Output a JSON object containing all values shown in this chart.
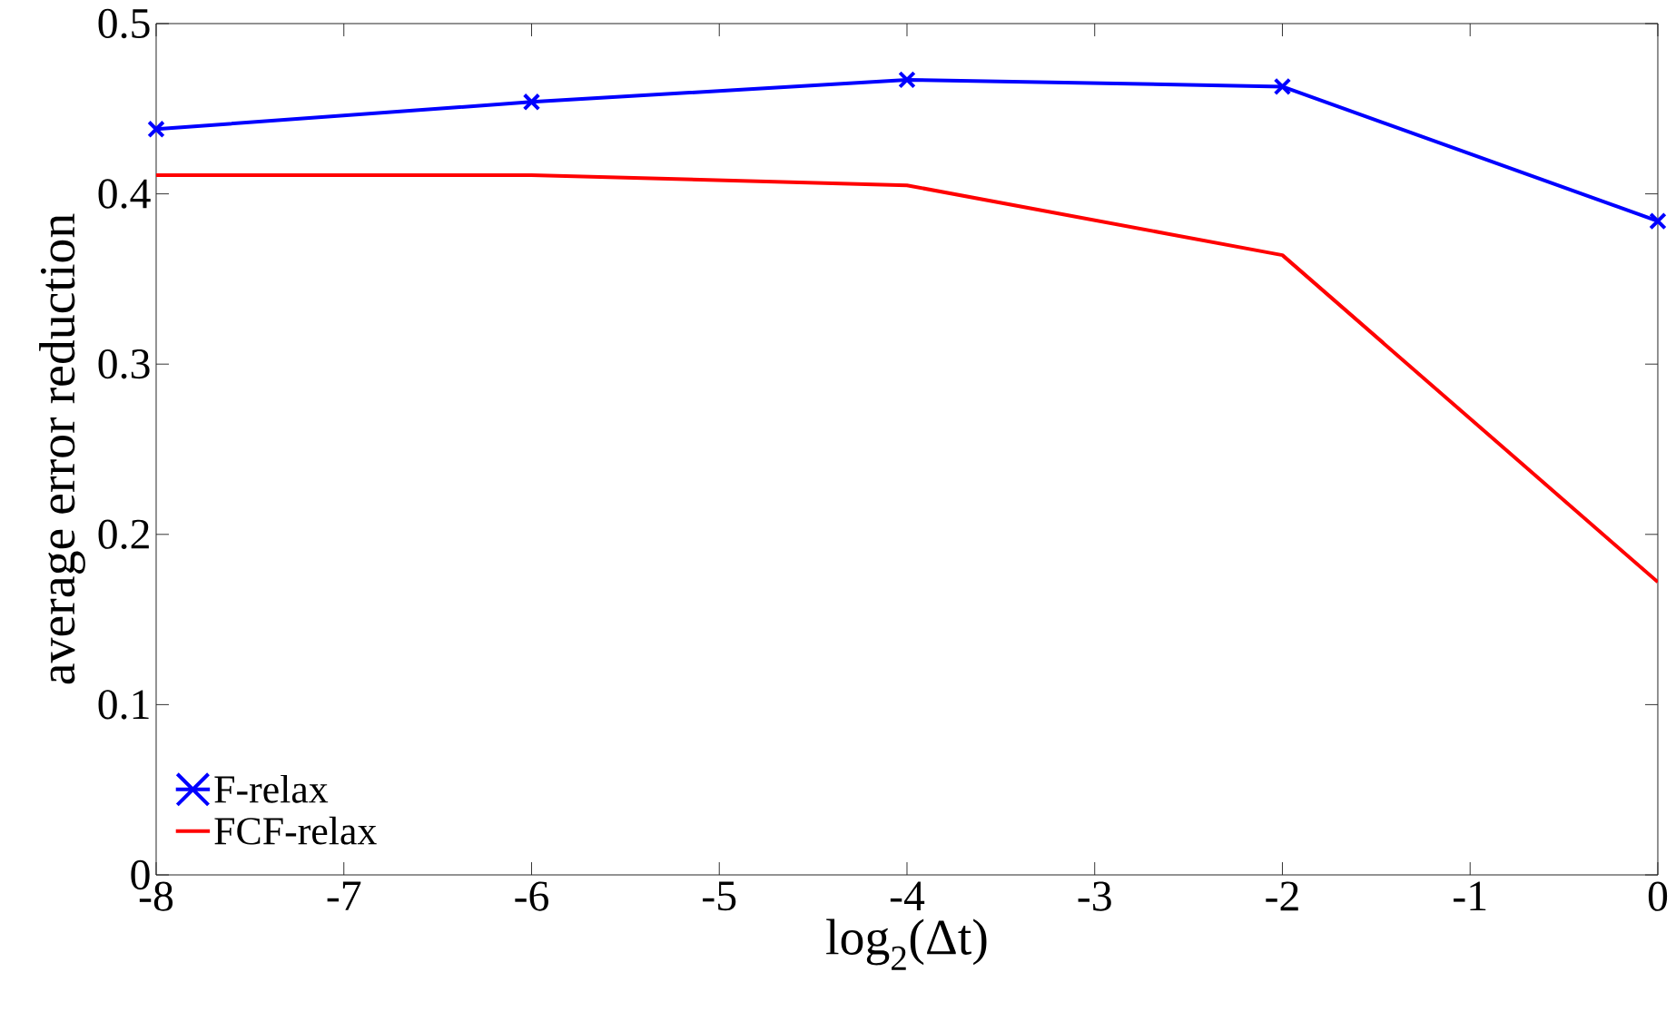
{
  "chart_data": {
    "type": "line",
    "xlabel": "log$_{2}$(Δt)",
    "ylabel": "average error reduction",
    "x": [
      -8,
      -6,
      -4,
      -2,
      0
    ],
    "series": [
      {
        "name": "F-relax",
        "color": "#0000ff",
        "marker": "cross",
        "values": [
          0.438,
          0.454,
          0.467,
          0.463,
          0.384
        ]
      },
      {
        "name": "FCF-relax",
        "color": "#ff0000",
        "marker": "none",
        "values": [
          0.411,
          0.411,
          0.405,
          0.364,
          0.172
        ]
      }
    ],
    "xlim": [
      -8,
      0
    ],
    "ylim": [
      0,
      0.5
    ],
    "xticks": [
      -8,
      -7,
      -6,
      -5,
      -4,
      -3,
      -2,
      -1,
      0
    ],
    "yticks": [
      0,
      0.1,
      0.2,
      0.3,
      0.4,
      0.5
    ],
    "grid": false,
    "legend": "bottom left",
    "line_style": "solid"
  }
}
